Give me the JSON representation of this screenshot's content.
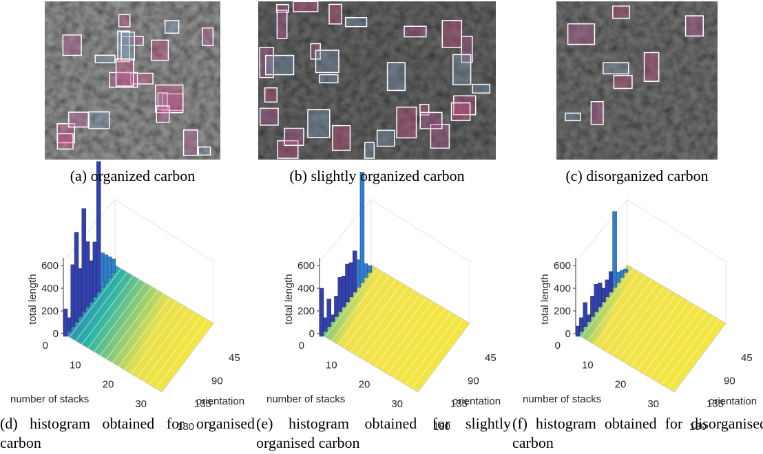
{
  "images": [
    {
      "caption": "(a) organized carbon"
    },
    {
      "caption": "(b) slightly organized carbon"
    },
    {
      "caption": "(c) disorganized carbon"
    }
  ],
  "histograms": [
    {
      "caption": "(d) histogram obtained for organised carbon",
      "z_label": "total length",
      "z_ticks": [
        "0",
        "200",
        "400",
        "600"
      ],
      "y_label": "number of stacks",
      "y_ticks": [
        "0",
        "10",
        "20",
        "30"
      ],
      "x_label": "orientation",
      "x_ticks": [
        "45",
        "90",
        "135",
        "180"
      ]
    },
    {
      "caption": "(e) histogram obtained for slightly organised carbon",
      "z_label": "total length",
      "z_ticks": [
        "0",
        "200",
        "400",
        "600"
      ],
      "y_label": "number of stacks",
      "y_ticks": [
        "0",
        "10",
        "20",
        "30"
      ],
      "x_label": "orientation",
      "x_ticks": [
        "45",
        "90",
        "135",
        "180"
      ]
    },
    {
      "caption": "(f) histogram obtained for disorganised carbon",
      "z_label": "total length",
      "z_ticks": [
        "0",
        "200",
        "400",
        "600"
      ],
      "y_label": "number of stacks",
      "y_ticks": [
        "0",
        "10",
        "20",
        "30"
      ],
      "x_label": "orientation",
      "x_ticks": [
        "45",
        "90",
        "135",
        "180"
      ]
    }
  ]
}
